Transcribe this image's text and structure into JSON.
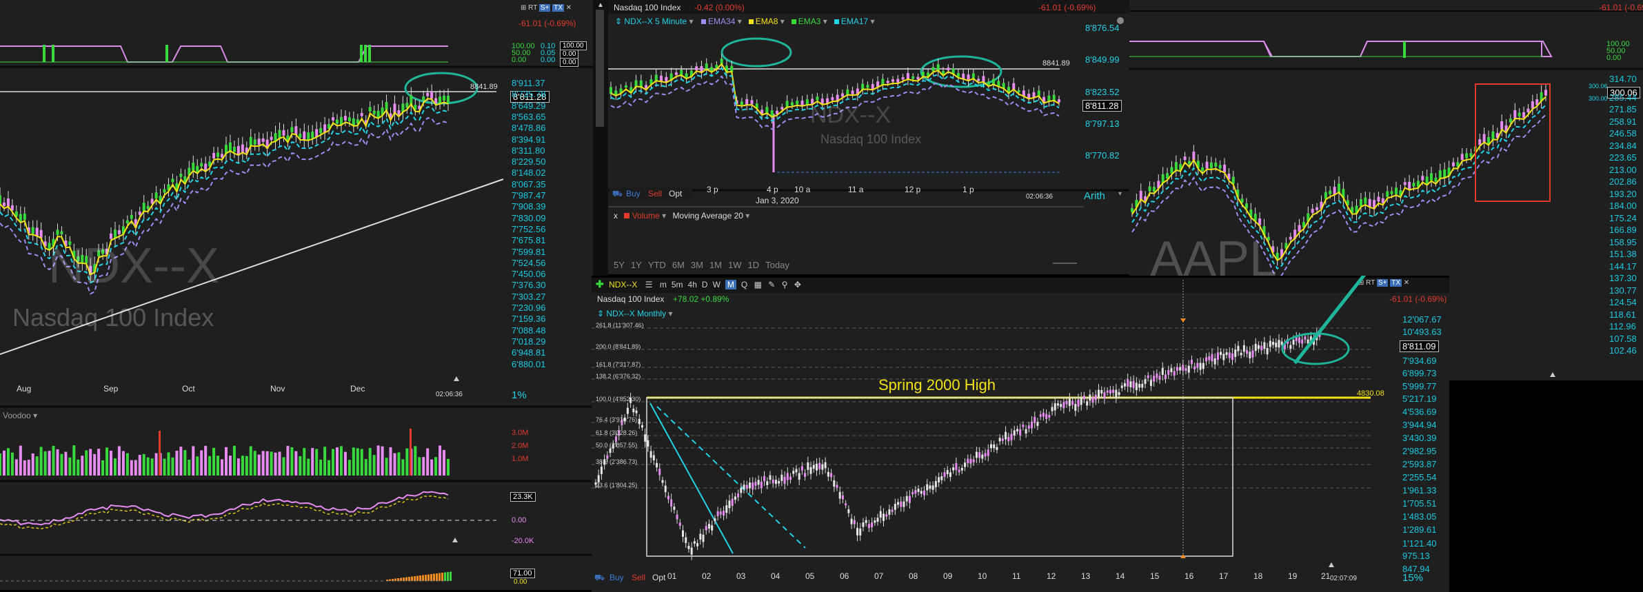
{
  "p1": {
    "watermark": "NDX--X",
    "name_watermark": "Nasdaq 100 Index",
    "header_change": "-61.01 (-0.69%)",
    "ind_levels": [
      "100.00",
      "50.00",
      "0.00"
    ],
    "ind_values": [
      "0.10",
      "0.05",
      "0.00"
    ],
    "ind_box": [
      "100.00",
      "0.00",
      "0.00"
    ],
    "ref_line_label": "8841.89",
    "last_price": "8'811.28",
    "y_ticks": [
      "8'911.37",
      "8'735.78",
      "8'649.29",
      "8'563.65",
      "8'478.86",
      "8'394.91",
      "8'311.80",
      "8'229.50",
      "8'148.02",
      "8'067.35",
      "7'987.47",
      "7'908.39",
      "7'830.09",
      "7'752.56",
      "7'675.81",
      "7'599.81",
      "7'524.56",
      "7'450.06",
      "7'376.30",
      "7'303.27",
      "7'230.96",
      "7'159.36",
      "7'088.48",
      "7'018.29",
      "6'948.81",
      "6'880.01"
    ],
    "x_ticks": [
      "Aug",
      "Sep",
      "Oct",
      "Nov",
      "Dec"
    ],
    "time": "02:06:36",
    "zoom": "1%",
    "volume_study": "Voodoo",
    "vol_ticks": [
      "3.0M",
      "2.0M",
      "1.0M"
    ],
    "osc_ticks": [
      "0.00",
      "-20.0K"
    ],
    "osc_box": "23.3K",
    "bottom_box": [
      "71.00",
      "0.00"
    ]
  },
  "p2": {
    "title": "Nasdaq 100 Index",
    "title_change": "-0.42 (0.00%)",
    "header_change": "-61.01 (-0.69%)",
    "symbol_label": "NDX--X 5 Minute",
    "studies": [
      {
        "name": "EMA34",
        "color": "#9f8cf0"
      },
      {
        "name": "EMA8",
        "color": "#f2e312"
      },
      {
        "name": "EMA3",
        "color": "#39d93d"
      },
      {
        "name": "EMA17",
        "color": "#22d3e6"
      }
    ],
    "watermark": "NDX--X",
    "name_watermark": "Nasdaq 100 Index",
    "ref_line_label": "8841.89",
    "y_ticks": [
      "8'876.54",
      "8'849.99",
      "8'823.52",
      "8'797.13",
      "8'770.82"
    ],
    "last_price": "8'811.28",
    "x_ticks": [
      "3 p",
      "4 p",
      "10 a",
      "11 a",
      "12 p",
      "1 p"
    ],
    "date": "Jan 3, 2020",
    "time": "02:06:36",
    "scale_mode": "Arith",
    "trade_buttons": [
      "Buy",
      "Sell",
      "Opt"
    ],
    "volume_study": "Volume",
    "ma_study": "Moving Average 20",
    "ranges": [
      "5Y",
      "1Y",
      "YTD",
      "6M",
      "3M",
      "1M",
      "1W",
      "1D",
      "Today"
    ]
  },
  "p3": {
    "watermark": "AAPL",
    "header_change": "-61.01 (-0.69%)",
    "ind_levels": [
      "100.00",
      "50.00",
      "0.00"
    ],
    "price_tag": "300.06",
    "mini_tags": [
      "300.06",
      "300.00"
    ],
    "y_ticks": [
      "314.70",
      "285.44",
      "271.85",
      "258.91",
      "246.58",
      "234.84",
      "223.65",
      "213.00",
      "202.86",
      "193.20",
      "184.00",
      "175.24",
      "166.89",
      "158.95",
      "151.38",
      "144.17",
      "137.30",
      "130.77",
      "124.54",
      "118.61",
      "112.96",
      "107.58",
      "102.46"
    ]
  },
  "p4": {
    "symbol": "NDX--X",
    "toolbar_periods": [
      "m",
      "5m",
      "4h",
      "D",
      "W",
      "M",
      "Q"
    ],
    "active_period": "M",
    "title": "Nasdaq 100 Index",
    "title_change": "+78.02 +0.89%",
    "symbol_label": "NDX--X Monthly",
    "header_change": "-61.01 (-0.69%)",
    "fib_labels": [
      "261.8 (11'307.46)",
      "200.0 (8'841.89)",
      "161.8 (7'317.87)",
      "138.2 (6'376.32)",
      "100.0 (4'852.30)",
      "76.4 (3'910.76)",
      "61.8 (3'328.26)",
      "50.0 (2'857.55)",
      "38.2 (2'386.73)",
      "23.6 (1'804.25)"
    ],
    "annotation": "Spring 2000 High",
    "level_label": "4830.08",
    "last_price": "8'811.09",
    "y_ticks": [
      "12'067.67",
      "10'493.63",
      "7'934.69",
      "6'899.73",
      "5'999.77",
      "5'217.19",
      "4'536.69",
      "3'944.94",
      "3'430.39",
      "2'982.95",
      "2'593.87",
      "2'255.54",
      "1'961.33",
      "1'705.51",
      "1'483.05",
      "1'289.61",
      "1'121.40",
      "975.13",
      "847.94"
    ],
    "x_ticks": [
      "01",
      "02",
      "03",
      "04",
      "05",
      "06",
      "07",
      "08",
      "09",
      "10",
      "11",
      "12",
      "13",
      "14",
      "15",
      "16",
      "17",
      "18",
      "19",
      "21"
    ],
    "time": "02:07:09",
    "zoom": "15%",
    "trade_buttons": [
      "Buy",
      "Sell",
      "Opt"
    ]
  },
  "colors": {
    "cyan": "#22d3e6",
    "yellow": "#f2e312",
    "green": "#39d93d",
    "pink": "#e68cf0",
    "red": "#e23b2e",
    "teal": "#1fb59a"
  }
}
